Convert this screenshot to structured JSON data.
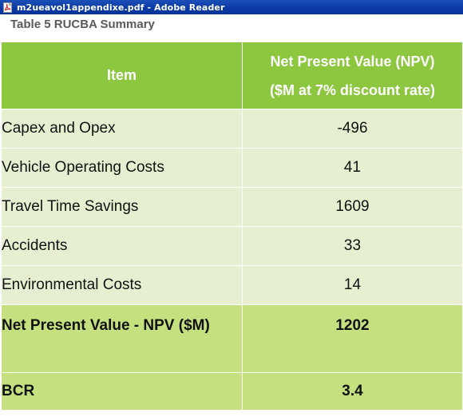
{
  "window": {
    "title": "m2ueavol1appendixe.pdf - Adobe Reader",
    "title_bar_color": "#0a3aa6"
  },
  "document": {
    "caption": "Table 5 RUCBA Summary",
    "table": {
      "header": {
        "item": "Item",
        "value_line1": "Net Present Value (NPV)",
        "value_line2": "($M at 7% discount rate)"
      },
      "rows": [
        {
          "item": "Capex and Opex",
          "value": "-496"
        },
        {
          "item": "Vehicle Operating Costs",
          "value": "41"
        },
        {
          "item": "Travel Time Savings",
          "value": "1609"
        },
        {
          "item": "Accidents",
          "value": "33"
        },
        {
          "item": "Environmental Costs",
          "value": "14"
        }
      ],
      "totals": [
        {
          "item": "Net Present Value - NPV ($M)",
          "value": "1202"
        },
        {
          "item": "BCR",
          "value": "3.4"
        }
      ],
      "colors": {
        "header": "#8dc63f",
        "row_light": "#e6f0d0",
        "row_strong": "#c5e07e"
      }
    }
  }
}
